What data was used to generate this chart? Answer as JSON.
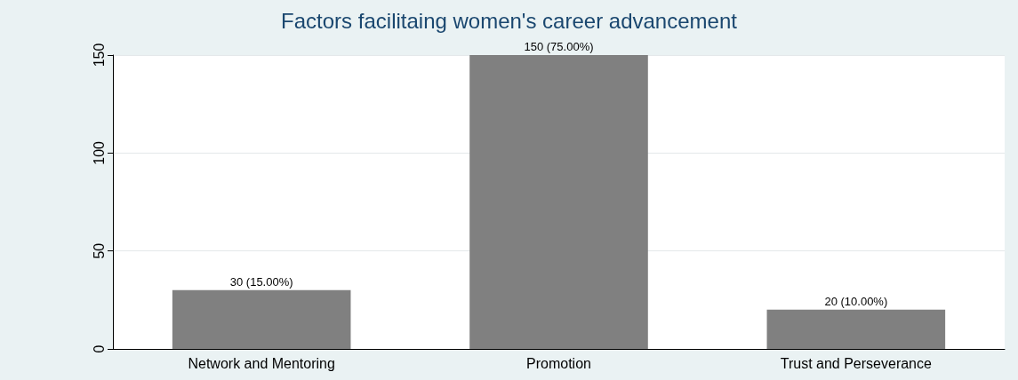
{
  "chart_data": {
    "type": "bar",
    "title": "Factors facilitaing women's career advancement",
    "categories": [
      "Network and Mentoring",
      "Promotion",
      "Trust and Perseverance"
    ],
    "values": [
      30,
      150,
      20
    ],
    "color": "#808080",
    "value_labels": [
      "30 (15.00%)",
      "150 (75.00%)",
      "20 (10.00%)"
    ],
    "ylim": [
      0,
      150
    ],
    "yticks": [
      0,
      50,
      100,
      150
    ],
    "grid": "y"
  }
}
